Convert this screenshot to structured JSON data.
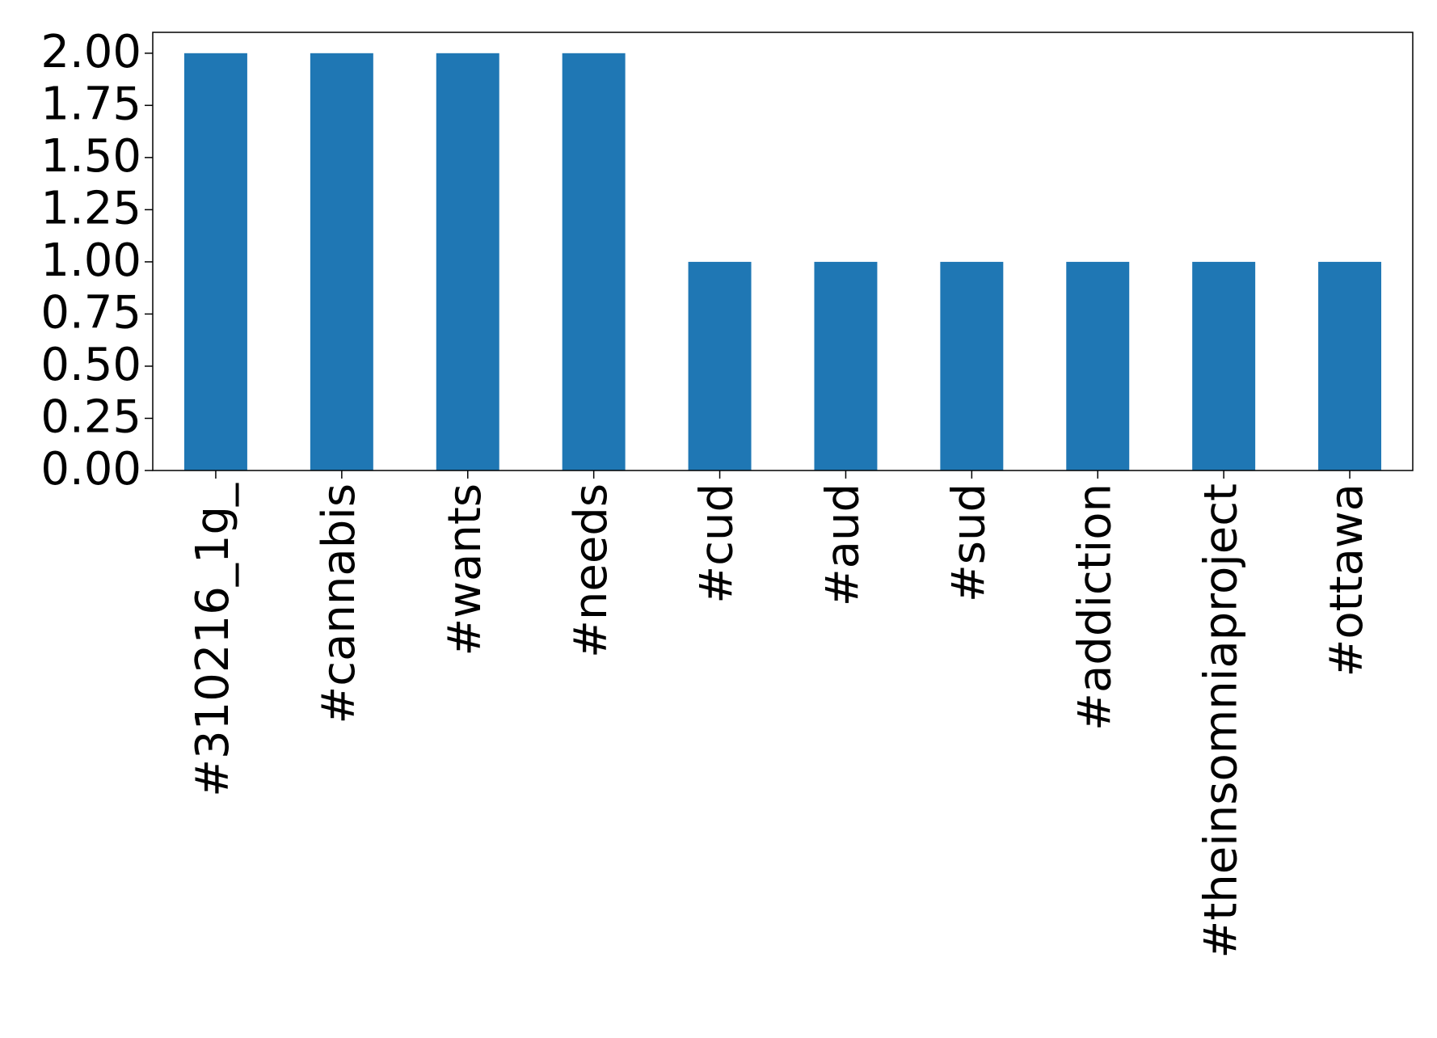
{
  "chart_data": {
    "type": "bar",
    "categories": [
      "#310216_1g_",
      "#cannabis",
      "#wants",
      "#needs",
      "#cud",
      "#aud",
      "#sud",
      "#addiction",
      "#theinsomniaproject",
      "#ottawa"
    ],
    "values": [
      2,
      2,
      2,
      2,
      1,
      1,
      1,
      1,
      1,
      1
    ],
    "color": "#1f77b4",
    "ylim": [
      0,
      2.1
    ],
    "yticks": [
      {
        "value": 0,
        "label": "0.00"
      },
      {
        "value": 0.25,
        "label": "0.25"
      },
      {
        "value": 0.5,
        "label": "0.50"
      },
      {
        "value": 0.75,
        "label": "0.75"
      },
      {
        "value": 1,
        "label": "1.00"
      },
      {
        "value": 1.25,
        "label": "1.25"
      },
      {
        "value": 1.5,
        "label": "1.50"
      },
      {
        "value": 1.75,
        "label": "1.75"
      },
      {
        "value": 2,
        "label": "2.00"
      }
    ],
    "grid": false
  }
}
